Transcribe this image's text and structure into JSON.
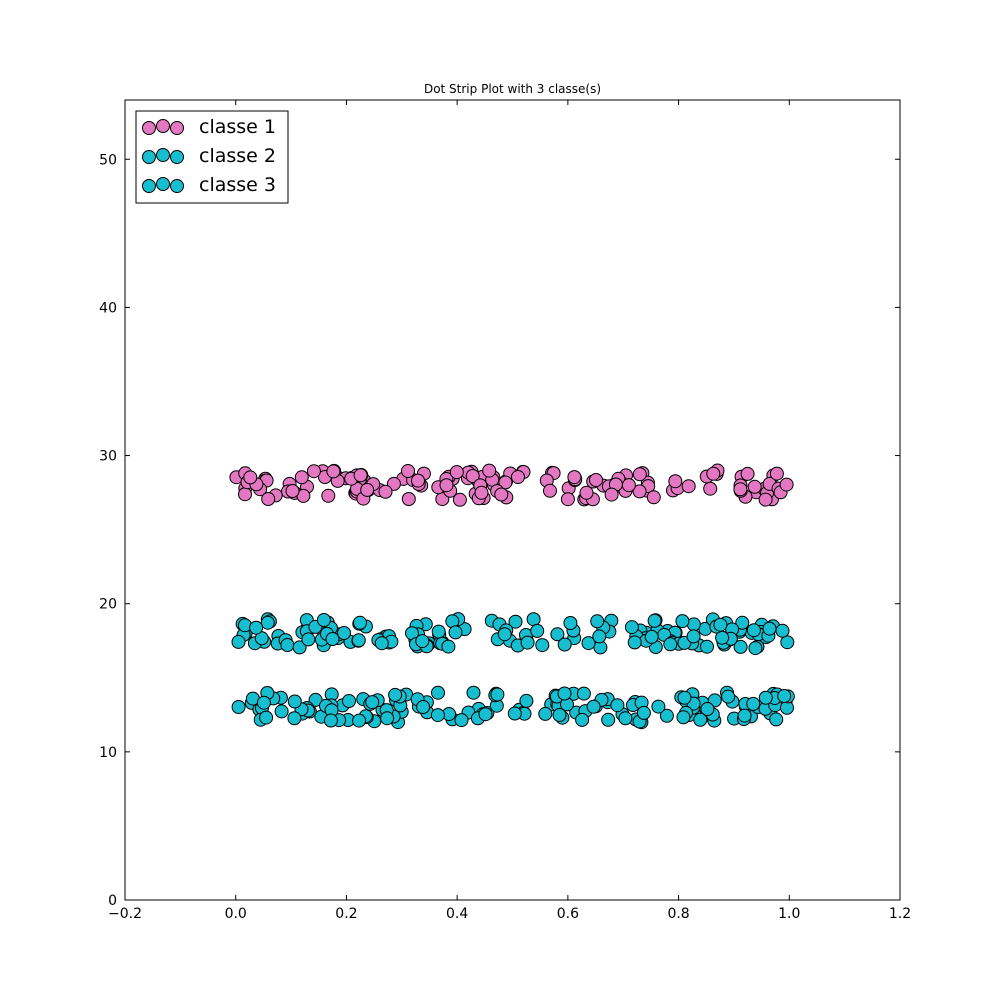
{
  "chart_data": {
    "type": "scatter",
    "title": "Dot Strip Plot with 3 classe(s)",
    "xlabel": "",
    "ylabel": "",
    "xlim": [
      -0.2,
      1.2
    ],
    "ylim": [
      0,
      54
    ],
    "x_ticks": [
      -0.2,
      0.0,
      0.2,
      0.4,
      0.6,
      0.8,
      1.0,
      1.2
    ],
    "x_tick_labels": [
      "−0.2",
      "0.0",
      "0.2",
      "0.4",
      "0.6",
      "0.8",
      "1.0",
      "1.2"
    ],
    "y_ticks": [
      0,
      10,
      20,
      30,
      40,
      50
    ],
    "y_tick_labels": [
      "0",
      "10",
      "20",
      "30",
      "40",
      "50"
    ],
    "grid": false,
    "legend_position": "top-left",
    "series": [
      {
        "name": "classe 1",
        "color": "#e377c2",
        "n": 150,
        "y_range": [
          27.0,
          29.0
        ]
      },
      {
        "name": "classe 2",
        "color": "#17becf",
        "n": 150,
        "y_range": [
          17.0,
          19.0
        ]
      },
      {
        "name": "classe 3",
        "color": "#17becf",
        "n": 150,
        "y_range": [
          12.0,
          14.0
        ]
      }
    ]
  }
}
